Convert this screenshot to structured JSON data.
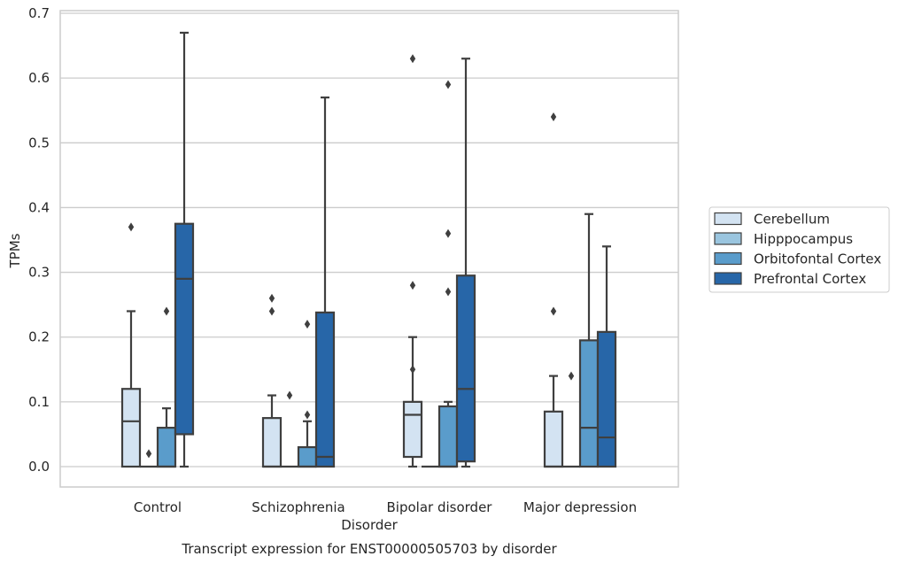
{
  "chart_data": {
    "type": "box",
    "caption": "Transcript expression for ENST00000505703 by disorder",
    "xlabel": "Disorder",
    "ylabel": "TPMs",
    "ylim": [
      -0.03,
      0.705
    ],
    "yticks": [
      "0.0",
      "0.1",
      "0.2",
      "0.3",
      "0.4",
      "0.5",
      "0.6",
      "0.7"
    ],
    "ytick_values": [
      0,
      0.1,
      0.2,
      0.3,
      0.4,
      0.5,
      0.6,
      0.7
    ],
    "categories": [
      "Control",
      "Schizophrenia",
      "Bipolar disorder",
      "Major depression"
    ],
    "grid": "horizontal",
    "legend_position": "right",
    "series": [
      {
        "name": "Cerebellum",
        "color": "#d3e3f2",
        "boxes": [
          {
            "q1": 0,
            "median": 0.07,
            "q3": 0.12,
            "whislo": 0,
            "whishi": 0.24,
            "fliers": [
              0.37
            ]
          },
          {
            "q1": 0,
            "median": 0,
            "q3": 0.075,
            "whislo": 0,
            "whishi": 0.11,
            "fliers": [
              0.24,
              0.26
            ]
          },
          {
            "q1": 0.015,
            "median": 0.08,
            "q3": 0.1,
            "whislo": 0,
            "whishi": 0.2,
            "fliers": [
              0.15,
              0.28,
              0.63
            ]
          },
          {
            "q1": 0,
            "median": 0,
            "q3": 0.085,
            "whislo": 0,
            "whishi": 0.14,
            "fliers": [
              0.24,
              0.54
            ]
          }
        ]
      },
      {
        "name": "Hipppocampus",
        "color": "#9ac5df",
        "boxes": [
          {
            "q1": 0,
            "median": 0,
            "q3": 0,
            "whislo": 0,
            "whishi": 0,
            "fliers": [
              0.02
            ]
          },
          {
            "q1": 0,
            "median": 0,
            "q3": 0,
            "whislo": 0,
            "whishi": 0,
            "fliers": [
              0.11
            ]
          },
          {
            "q1": 0,
            "median": 0,
            "q3": 0,
            "whislo": 0,
            "whishi": 0,
            "fliers": []
          },
          {
            "q1": 0,
            "median": 0,
            "q3": 0,
            "whislo": 0,
            "whishi": 0,
            "fliers": [
              0.14
            ]
          }
        ]
      },
      {
        "name": "Orbitofontal Cortex",
        "color": "#5a9ccb",
        "boxes": [
          {
            "q1": 0,
            "median": 0,
            "q3": 0.06,
            "whislo": 0,
            "whishi": 0.09,
            "fliers": [
              0.24
            ]
          },
          {
            "q1": 0,
            "median": 0,
            "q3": 0.03,
            "whislo": 0,
            "whishi": 0.07,
            "fliers": [
              0.08,
              0.22
            ]
          },
          {
            "q1": 0,
            "median": 0,
            "q3": 0.093,
            "whislo": 0,
            "whishi": 0.1,
            "fliers": [
              0.27,
              0.36,
              0.59
            ]
          },
          {
            "q1": 0,
            "median": 0.06,
            "q3": 0.195,
            "whislo": 0,
            "whishi": 0.39,
            "fliers": []
          }
        ]
      },
      {
        "name": "Prefrontal Cortex",
        "color": "#2766a8",
        "boxes": [
          {
            "q1": 0.05,
            "median": 0.29,
            "q3": 0.375,
            "whislo": 0,
            "whishi": 0.67,
            "fliers": []
          },
          {
            "q1": 0,
            "median": 0.015,
            "q3": 0.238,
            "whislo": 0,
            "whishi": 0.57,
            "fliers": []
          },
          {
            "q1": 0.008,
            "median": 0.12,
            "q3": 0.295,
            "whislo": 0,
            "whishi": 0.63,
            "fliers": []
          },
          {
            "q1": 0,
            "median": 0.045,
            "q3": 0.208,
            "whislo": 0,
            "whishi": 0.34,
            "fliers": []
          }
        ]
      }
    ]
  },
  "colors": {
    "edge": "#3f3f3f",
    "grid": "#cccccc",
    "text": "#262626"
  }
}
